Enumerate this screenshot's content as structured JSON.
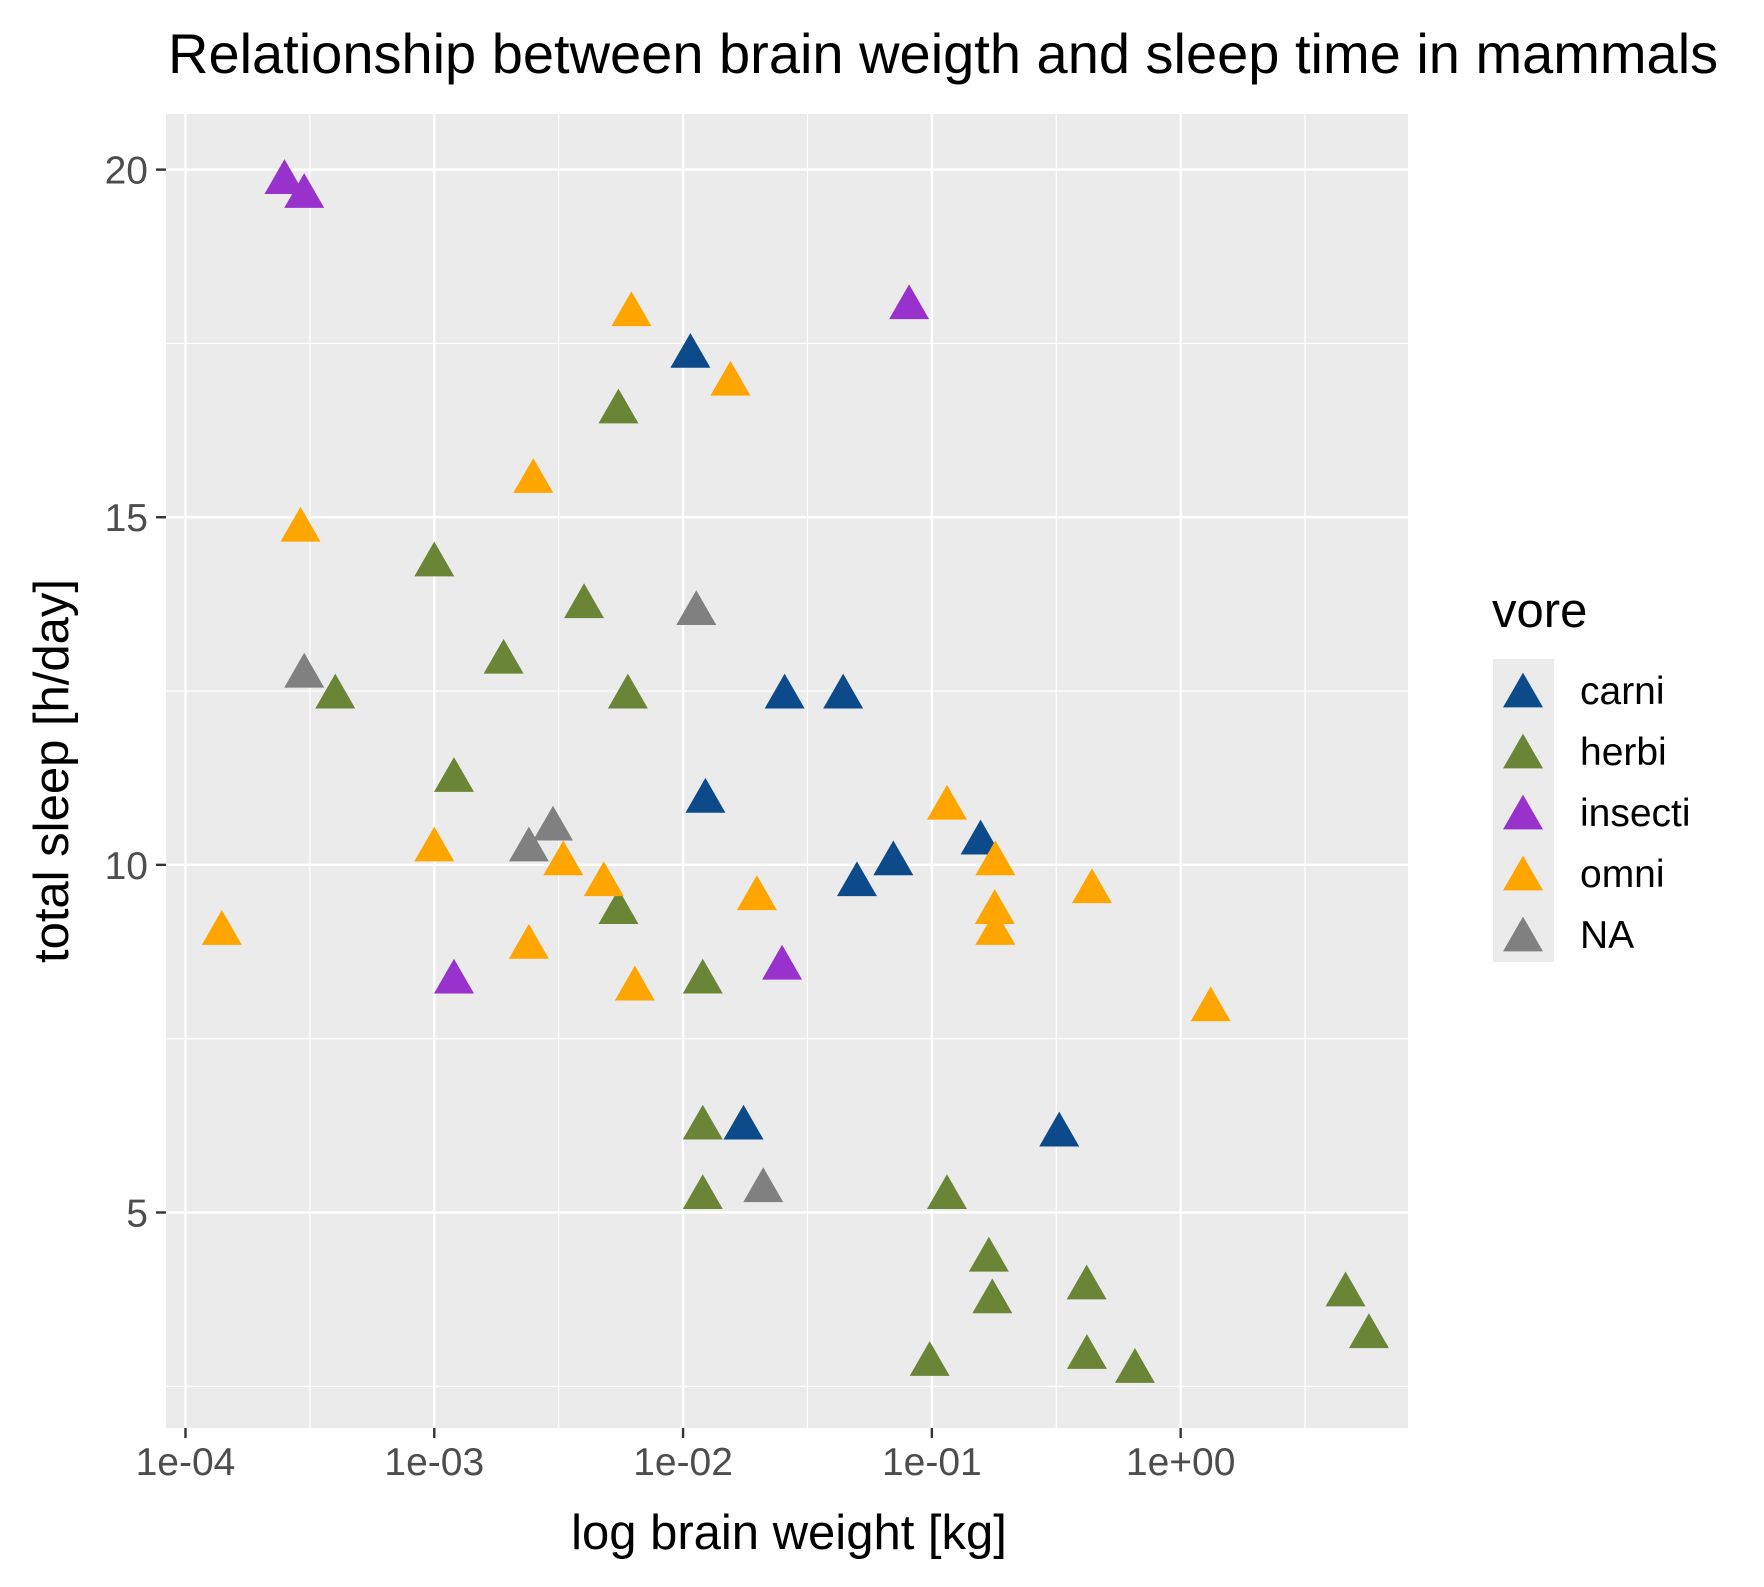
{
  "chart_data": {
    "type": "scatter",
    "title": "Relationship between brain weigth and sleep time in mammals",
    "xlabel": "log brain weight [kg]",
    "ylabel": "total sleep [h/day]",
    "x_scale": "log10",
    "xlim": [
      8.35e-05,
      8.2
    ],
    "ylim": [
      1.9,
      20.8
    ],
    "x_ticks": [
      0.0001,
      0.001,
      0.01,
      0.1,
      1
    ],
    "x_tick_labels": [
      "1e-04",
      "1e-03",
      "1e-02",
      "1e-01",
      "1e+00"
    ],
    "y_ticks": [
      5,
      10,
      15,
      20
    ],
    "y_tick_labels": [
      "5",
      "10",
      "15",
      "20"
    ],
    "grid": true,
    "marker": "triangle",
    "legend": {
      "title": "vore",
      "position": "right"
    },
    "series": [
      {
        "name": "carni",
        "color": "#0d4a8a",
        "points": [
          [
            0.0107,
            17.4
          ],
          [
            0.0256,
            12.5
          ],
          [
            0.044,
            12.5
          ],
          [
            0.0123,
            11.0
          ],
          [
            0.157,
            10.4
          ],
          [
            0.07,
            10.1
          ],
          [
            0.05,
            9.8
          ],
          [
            0.0175,
            6.3
          ],
          [
            0.325,
            6.2
          ]
        ]
      },
      {
        "name": "herbi",
        "color": "#6b8536",
        "points": [
          [
            0.0055,
            16.6
          ],
          [
            0.001,
            14.4
          ],
          [
            0.004,
            13.8
          ],
          [
            0.0019,
            13.0
          ],
          [
            0.0004,
            12.5
          ],
          [
            0.006,
            12.5
          ],
          [
            0.0012,
            11.3
          ],
          [
            0.0055,
            9.4
          ],
          [
            0.012,
            8.4
          ],
          [
            0.012,
            6.3
          ],
          [
            0.012,
            5.3
          ],
          [
            0.115,
            5.3
          ],
          [
            0.1695,
            4.4
          ],
          [
            0.175,
            3.8
          ],
          [
            0.419,
            4.0
          ],
          [
            0.098,
            2.9
          ],
          [
            0.42,
            3.0
          ],
          [
            0.655,
            2.8
          ],
          [
            4.6,
            3.9
          ],
          [
            5.712,
            3.3
          ]
        ]
      },
      {
        "name": "insecti",
        "color": "#9932cc",
        "points": [
          [
            0.00025,
            19.9
          ],
          [
            0.0003,
            19.7
          ],
          [
            0.081,
            18.1
          ],
          [
            0.0012,
            8.4
          ],
          [
            0.025,
            8.6
          ]
        ]
      },
      {
        "name": "omni",
        "color": "#ffa500",
        "points": [
          [
            0.0062,
            18.0
          ],
          [
            0.0155,
            17.0
          ],
          [
            0.0025,
            15.6
          ],
          [
            0.00029,
            14.9
          ],
          [
            0.001,
            10.3
          ],
          [
            0.0033,
            10.1
          ],
          [
            0.0048,
            9.8
          ],
          [
            0.0198,
            9.6
          ],
          [
            0.115,
            10.9
          ],
          [
            0.18,
            10.1
          ],
          [
            0.179,
            9.4
          ],
          [
            0.18,
            9.1
          ],
          [
            0.44,
            9.7
          ],
          [
            0.00014,
            9.1
          ],
          [
            0.0024,
            8.9
          ],
          [
            0.0064,
            8.3
          ],
          [
            1.32,
            8.0
          ]
        ]
      },
      {
        "name": "NA",
        "color": "#808080",
        "points": [
          [
            0.0113,
            13.7
          ],
          [
            0.0003,
            12.8
          ],
          [
            0.003,
            10.6
          ],
          [
            0.0024,
            10.3
          ],
          [
            0.021,
            5.4
          ]
        ]
      }
    ]
  }
}
